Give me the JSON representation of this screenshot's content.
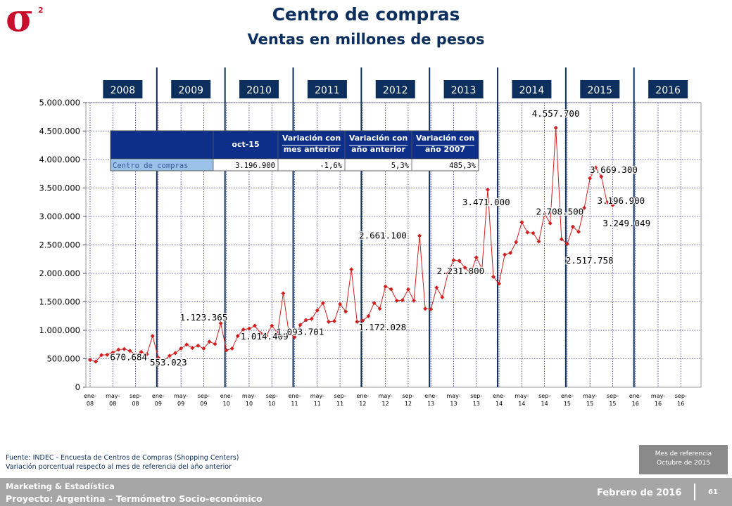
{
  "header": {
    "logo_symbol": "σ",
    "logo_superscript": "2",
    "title": "Centro de compras",
    "subtitle": "Ventas en millones de pesos"
  },
  "summary_table": {
    "headers": [
      "oct-15",
      "Variación con mes anterior",
      "Variación con año anterior",
      "Variación con año 2007"
    ],
    "header_lines": [
      [
        "oct-15"
      ],
      [
        "Variación con",
        "mes anterior"
      ],
      [
        "Variación con",
        "año anterior"
      ],
      [
        "Variación con",
        "año 2007"
      ]
    ],
    "row_label": "Centro de compras",
    "row_values": [
      "3.196.900",
      "-1,6%",
      "5,3%",
      "485,3%"
    ]
  },
  "chart_data": {
    "type": "line",
    "year_labels": [
      "2008",
      "2009",
      "2010",
      "2011",
      "2012",
      "2013",
      "2014",
      "2015",
      "2016"
    ],
    "y_ticks": [
      "0",
      "500.000",
      "1.000.000",
      "1.500.000",
      "2.000.000",
      "2.500.000",
      "3.000.000",
      "3.500.000",
      "4.000.000",
      "4.500.000",
      "5.000.000"
    ],
    "ylim": [
      0,
      5000000
    ],
    "x_tick_labels": [
      [
        "ene-",
        "08"
      ],
      [
        "may-",
        "08"
      ],
      [
        "sep-",
        "08"
      ],
      [
        "ene-",
        "09"
      ],
      [
        "may-",
        "09"
      ],
      [
        "sep-",
        "09"
      ],
      [
        "ene-",
        "10"
      ],
      [
        "may-",
        "10"
      ],
      [
        "sep-",
        "10"
      ],
      [
        "ene-",
        "11"
      ],
      [
        "may-",
        "11"
      ],
      [
        "sep-",
        "11"
      ],
      [
        "ene-",
        "12"
      ],
      [
        "may-",
        "12"
      ],
      [
        "sep-",
        "12"
      ],
      [
        "ene-",
        "13"
      ],
      [
        "may-",
        "13"
      ],
      [
        "sep-",
        "13"
      ],
      [
        "ene-",
        "14"
      ],
      [
        "may-",
        "14"
      ],
      [
        "sep-",
        "14"
      ],
      [
        "ene-",
        "15"
      ],
      [
        "may-",
        "15"
      ],
      [
        "sep-",
        "15"
      ],
      [
        "ene-",
        "16"
      ],
      [
        "may-",
        "16"
      ],
      [
        "sep-",
        "16"
      ]
    ],
    "grid": true,
    "line_color": "#d21f1f",
    "series": [
      {
        "values": [
          480000,
          450000,
          565000,
          570000,
          610000,
          660000,
          670684,
          640000,
          570000,
          620000,
          580000,
          900000,
          520000,
          470000,
          553023,
          600000,
          680000,
          750000,
          690000,
          730000,
          680000,
          800000,
          760000,
          1123365,
          650000,
          680000,
          900000,
          1014409,
          1030000,
          1080000,
          950000,
          900000,
          1080000,
          950000,
          1650000,
          960000,
          880000,
          1093701,
          1180000,
          1200000,
          1350000,
          1480000,
          1150000,
          1160000,
          1460000,
          1330000,
          2070000,
          1150000,
          1172028,
          1250000,
          1480000,
          1380000,
          1770000,
          1720000,
          1520000,
          1530000,
          1720000,
          1520000,
          2661100,
          1380000,
          1370000,
          1750000,
          1580000,
          2000000,
          2231800,
          2220000,
          2100000,
          2000000,
          2280000,
          2080000,
          3471000,
          1940000,
          1820000,
          2330000,
          2360000,
          2550000,
          2900000,
          2720000,
          2708500,
          2560000,
          3050000,
          2880000,
          4557700,
          2600000,
          2517758,
          2820000,
          2730000,
          3150000,
          3669300,
          3860000,
          3700000,
          3249049,
          3196900
        ]
      }
    ],
    "data_labels": [
      {
        "text": "670.684",
        "index": 6
      },
      {
        "text": "553.023",
        "index": 14
      },
      {
        "text": "1.123.365",
        "index": 23
      },
      {
        "text": "1.014.409",
        "index": 27
      },
      {
        "text": "1.093.701",
        "index": 37
      },
      {
        "text": "1.172.028",
        "index": 48
      },
      {
        "text": "2.661.100",
        "index": 58
      },
      {
        "text": "2.231.800",
        "index": 64
      },
      {
        "text": "3.471.000",
        "index": 70
      },
      {
        "text": "2.708.500",
        "index": 78
      },
      {
        "text": "4.557.700",
        "index": 82
      },
      {
        "text": "2.517.758",
        "index": 84
      },
      {
        "text": "3.669.300",
        "index": 88
      },
      {
        "text": "3.196.900",
        "index": 92
      },
      {
        "text": "3.249.049",
        "index": 91
      }
    ]
  },
  "footnote": {
    "line1": "Fuente: INDEC - Encuesta de Centros de Compras (Shopping Centers)",
    "line2": "Variación porcentual respecto al mes de referencia del año anterior"
  },
  "reference_box": {
    "line1": "Mes de referencia",
    "line2": "Octubre de 2015"
  },
  "footer": {
    "org": "Marketing & Estadística",
    "project": "Proyecto: Argentina – Termómetro Socio-económico",
    "date": "Febrero de 2016",
    "page": "61"
  }
}
